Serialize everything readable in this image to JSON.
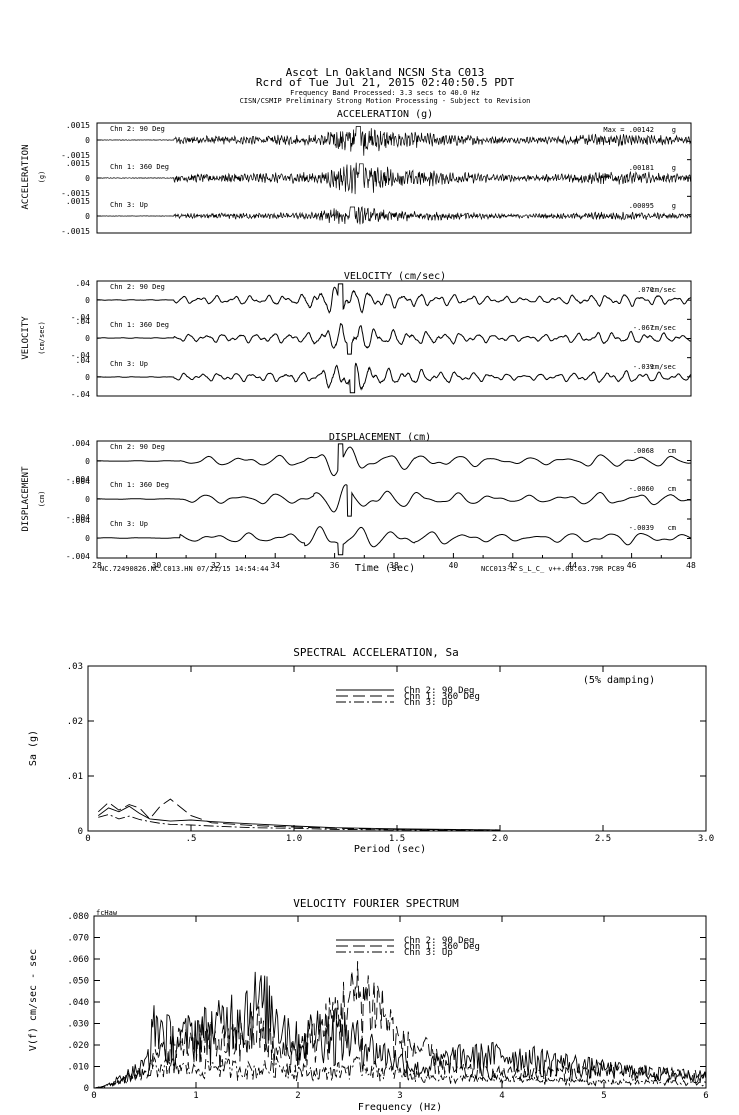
{
  "header": {
    "line1": "Ascot Ln Oakland     NCSN Sta C013",
    "line2": "Rcrd of Tue Jul 21, 2015 02:40:50.5 PDT",
    "line3": "Frequency Band Processed: 3.3 secs to 40.0 Hz",
    "line4": "CISN/CSMIP Preliminary Strong Motion Processing - Subject to Revision"
  },
  "time_series": {
    "x_ticks": [
      "28",
      "30",
      "32",
      "34",
      "36",
      "38",
      "40",
      "42",
      "44",
      "46",
      "48"
    ],
    "xlabel": "Time (sec)",
    "footer_left": "NC.72490826.NC.C013.HN 07/21/15 14:54:44",
    "footer_right": "NCC013-A  S_L_C_  v++.08.63.79R PC89",
    "max_label": "Max =",
    "panels": [
      {
        "title": "ACCELERATION (g)",
        "side_label": "ACCELERATION",
        "unit_label": "(g)",
        "unit": "g",
        "ticks": [
          ".0015",
          "0",
          "-.0015"
        ],
        "traces": [
          {
            "channel": "Chn 2: 90 Deg",
            "max": ".00142"
          },
          {
            "channel": "Chn 1: 360 Deg",
            "max": ".00181"
          },
          {
            "channel": "Chn 3: Up",
            "max": ".00095"
          }
        ]
      },
      {
        "title": "VELOCITY (cm/sec)",
        "side_label": "VELOCITY",
        "unit_label": "(cm/sec)",
        "unit": "cm/sec",
        "ticks": [
          ".04",
          "0",
          "-.04"
        ],
        "traces": [
          {
            "channel": "Chn 2: 90 Deg",
            "max": ".070"
          },
          {
            "channel": "Chn 1: 360 Deg",
            "max": "-.067"
          },
          {
            "channel": "Chn 3: Up",
            "max": "-.039"
          }
        ]
      },
      {
        "title": "DISPLACEMENT (cm)",
        "side_label": "DISPLACEMENT",
        "unit_label": "(cm)",
        "unit": "cm",
        "ticks": [
          ".004",
          "0",
          "-.004"
        ],
        "traces": [
          {
            "channel": "Chn 2: 90 Deg",
            "max": ".0068"
          },
          {
            "channel": "Chn 1: 360 Deg",
            "max": "-.0060"
          },
          {
            "channel": "Chn 3: Up",
            "max": "-.0039"
          }
        ]
      }
    ]
  },
  "spectral": {
    "title": "SPECTRAL ACCELERATION, Sa",
    "ylabel": "Sa (g)",
    "xlabel": "Period (sec)",
    "note": "(5% damping)",
    "x_ticks": [
      "0",
      ".5",
      "1.0",
      "1.5",
      "2.0",
      "2.5",
      "3.0"
    ],
    "y_ticks": [
      "0",
      ".01",
      ".02",
      ".03"
    ],
    "legend": [
      "Chn 2: 90 Deg",
      "Chn 1: 360 Deg",
      "Chn 3: Up"
    ]
  },
  "fourier": {
    "title": "VELOCITY FOURIER SPECTRUM",
    "ylabel": "V(f)  cm/sec - sec",
    "xlabel": "Frequency (Hz)",
    "corner": "fcHaw",
    "x_ticks": [
      "0",
      "1",
      "2",
      "3",
      "4",
      "5",
      "6"
    ],
    "y_ticks": [
      "0",
      ".010",
      ".020",
      ".030",
      ".040",
      ".050",
      ".060",
      ".070",
      ".080"
    ],
    "legend": [
      "Chn 2: 90 Deg",
      "Chn 1: 360 Deg",
      "Chn 3: Up"
    ]
  },
  "chart_data": [
    {
      "type": "line",
      "title": "ACCELERATION (g)",
      "xlabel": "Time (sec)",
      "ylabel": "ACCELERATION",
      "xlim": [
        28,
        48
      ],
      "ylim": [
        -0.0015,
        0.0015
      ],
      "series": [
        {
          "name": "Chn 2: 90 Deg",
          "peak": 0.00142,
          "peak_time": 36.8,
          "onset": 30.6
        },
        {
          "name": "Chn 1: 360 Deg",
          "peak": 0.00181,
          "peak_time": 36.9,
          "onset": 30.6
        },
        {
          "name": "Chn 3: Up",
          "peak": 0.00095,
          "peak_time": 36.6,
          "onset": 30.6
        }
      ]
    },
    {
      "type": "line",
      "title": "VELOCITY (cm/sec)",
      "xlabel": "Time (sec)",
      "ylabel": "VELOCITY",
      "xlim": [
        28,
        48
      ],
      "ylim": [
        -0.04,
        0.04
      ],
      "series": [
        {
          "name": "Chn 2: 90 Deg",
          "peak": 0.07,
          "peak_time": 36.2,
          "onset": 30.6
        },
        {
          "name": "Chn 1: 360 Deg",
          "peak": -0.067,
          "peak_time": 36.5,
          "onset": 30.6
        },
        {
          "name": "Chn 3: Up",
          "peak": -0.039,
          "peak_time": 36.6,
          "onset": 30.6
        }
      ]
    },
    {
      "type": "line",
      "title": "DISPLACEMENT (cm)",
      "xlabel": "Time (sec)",
      "ylabel": "DISPLACEMENT",
      "xlim": [
        28,
        48
      ],
      "ylim": [
        -0.004,
        0.004
      ],
      "series": [
        {
          "name": "Chn 2: 90 Deg",
          "peak": 0.0068,
          "peak_time": 36.2,
          "onset": 30.8
        },
        {
          "name": "Chn 1: 360 Deg",
          "peak": -0.006,
          "peak_time": 36.5,
          "onset": 30.8
        },
        {
          "name": "Chn 3: Up",
          "peak": -0.0039,
          "peak_time": 36.2,
          "onset": 30.8
        }
      ]
    },
    {
      "type": "line",
      "title": "SPECTRAL ACCELERATION, Sa",
      "xlabel": "Period (sec)",
      "ylabel": "Sa (g)",
      "xlim": [
        0,
        3.0
      ],
      "ylim": [
        0,
        0.03
      ],
      "x": [
        0.05,
        0.1,
        0.15,
        0.2,
        0.25,
        0.3,
        0.35,
        0.4,
        0.5,
        0.6,
        0.8,
        1.0,
        1.2,
        1.5,
        2.0
      ],
      "series": [
        {
          "name": "Chn 2: 90 Deg",
          "values": [
            0.0028,
            0.0042,
            0.0035,
            0.0045,
            0.0032,
            0.0022,
            0.002,
            0.0018,
            0.002,
            0.0017,
            0.0013,
            0.0009,
            0.0006,
            0.0004,
            0.0002
          ]
        },
        {
          "name": "Chn 1: 360 Deg",
          "values": [
            0.0035,
            0.0052,
            0.0038,
            0.0048,
            0.0042,
            0.0022,
            0.0045,
            0.0058,
            0.0028,
            0.0015,
            0.001,
            0.0007,
            0.0005,
            0.0003,
            0.0002
          ]
        },
        {
          "name": "Chn 3: Up",
          "values": [
            0.0025,
            0.003,
            0.0022,
            0.0027,
            0.0021,
            0.0017,
            0.0014,
            0.0012,
            0.0011,
            0.0009,
            0.0006,
            0.0005,
            0.0003,
            0.0002,
            0.0001
          ]
        }
      ]
    },
    {
      "type": "line",
      "title": "VELOCITY FOURIER SPECTRUM",
      "xlabel": "Frequency (Hz)",
      "ylabel": "V(f)  cm/sec - sec",
      "xlim": [
        0,
        6
      ],
      "ylim": [
        0,
        0.08
      ],
      "x": [
        0.1,
        0.3,
        0.5,
        0.6,
        0.8,
        1.0,
        1.2,
        1.4,
        1.6,
        1.8,
        2.0,
        2.2,
        2.4,
        2.6,
        2.8,
        3.0,
        3.2,
        3.5,
        4.0,
        4.5,
        5.0,
        5.5,
        6.0
      ],
      "series": [
        {
          "name": "Chn 2: 90 Deg",
          "values": [
            0.001,
            0.008,
            0.015,
            0.043,
            0.03,
            0.038,
            0.04,
            0.05,
            0.057,
            0.048,
            0.03,
            0.04,
            0.035,
            0.032,
            0.024,
            0.018,
            0.012,
            0.02,
            0.022,
            0.018,
            0.013,
            0.01,
            0.008
          ]
        },
        {
          "name": "Chn 1: 360 Deg",
          "values": [
            0.001,
            0.006,
            0.012,
            0.02,
            0.028,
            0.035,
            0.03,
            0.03,
            0.04,
            0.022,
            0.025,
            0.035,
            0.05,
            0.062,
            0.055,
            0.028,
            0.026,
            0.012,
            0.01,
            0.01,
            0.012,
            0.01,
            0.008
          ]
        },
        {
          "name": "Chn 3: Up",
          "values": [
            0.001,
            0.005,
            0.01,
            0.015,
            0.014,
            0.012,
            0.015,
            0.013,
            0.012,
            0.015,
            0.012,
            0.01,
            0.012,
            0.015,
            0.012,
            0.01,
            0.008,
            0.006,
            0.006,
            0.005,
            0.004,
            0.004,
            0.003
          ]
        }
      ]
    }
  ]
}
